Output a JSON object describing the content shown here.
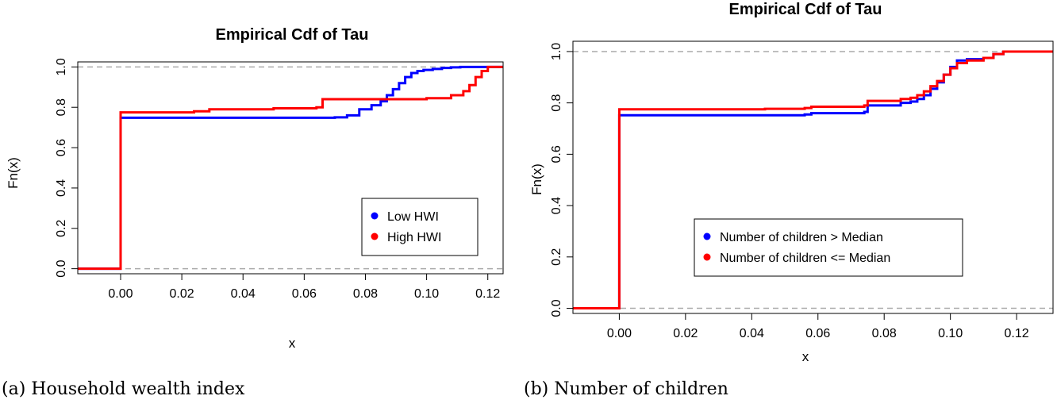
{
  "figure": {
    "caption_a": "(a) Household wealth index",
    "caption_b": "(b) Number of children"
  },
  "colors": {
    "blue": "#0000ff",
    "red": "#ff0000",
    "ref_line": "#aaaaaa",
    "axis": "#000000"
  },
  "chart_data": [
    {
      "type": "line",
      "step": "post",
      "title": "Empirical Cdf of Tau",
      "xlabel": "x",
      "ylabel": "Fn(x)",
      "xlim": [
        -0.014,
        0.125
      ],
      "ylim": [
        -0.025,
        1.025
      ],
      "xticks": [
        0.0,
        0.02,
        0.04,
        0.06,
        0.08,
        0.1,
        0.12
      ],
      "xtick_labels": [
        "0.00",
        "0.02",
        "0.04",
        "0.06",
        "0.08",
        "0.10",
        "0.12"
      ],
      "yticks": [
        0.0,
        0.2,
        0.4,
        0.6,
        0.8,
        1.0
      ],
      "ytick_labels": [
        "0.0",
        "0.2",
        "0.4",
        "0.6",
        "0.8",
        "1.0"
      ],
      "reference_lines_y": [
        0,
        1
      ],
      "legend": {
        "position": "bottom-right",
        "entries": [
          "Low HWI",
          "High HWI"
        ]
      },
      "series": [
        {
          "name": "Low HWI",
          "color": "#0000ff",
          "x": [
            0.0,
            0.07,
            0.074,
            0.078,
            0.082,
            0.085,
            0.087,
            0.089,
            0.091,
            0.093,
            0.095,
            0.097,
            0.099,
            0.102,
            0.105,
            0.108,
            0.111
          ],
          "y": [
            0.748,
            0.75,
            0.76,
            0.79,
            0.81,
            0.83,
            0.86,
            0.89,
            0.92,
            0.95,
            0.97,
            0.98,
            0.985,
            0.99,
            0.995,
            0.998,
            1.0
          ]
        },
        {
          "name": "High HWI",
          "color": "#ff0000",
          "x": [
            0.0,
            0.024,
            0.029,
            0.05,
            0.064,
            0.066,
            0.1,
            0.108,
            0.112,
            0.114,
            0.116,
            0.118,
            0.12
          ],
          "y": [
            0.775,
            0.78,
            0.79,
            0.795,
            0.8,
            0.84,
            0.845,
            0.86,
            0.88,
            0.91,
            0.95,
            0.98,
            1.0
          ]
        }
      ]
    },
    {
      "type": "line",
      "step": "post",
      "title": "Empirical Cdf of Tau",
      "xlabel": "x",
      "ylabel": "Fn(x)",
      "xlim": [
        -0.014,
        0.131
      ],
      "ylim": [
        -0.02,
        1.04
      ],
      "xticks": [
        0.0,
        0.02,
        0.04,
        0.06,
        0.08,
        0.1,
        0.12
      ],
      "xtick_labels": [
        "0.00",
        "0.02",
        "0.04",
        "0.06",
        "0.08",
        "0.10",
        "0.12"
      ],
      "yticks": [
        0.0,
        0.2,
        0.4,
        0.6,
        0.8,
        1.0
      ],
      "ytick_labels": [
        "0.0",
        "0.2",
        "0.4",
        "0.6",
        "0.8",
        "1.0"
      ],
      "reference_lines_y": [
        0,
        1
      ],
      "legend": {
        "position": "bottom-center",
        "entries": [
          "Number of children > Median",
          "Number of children <= Median"
        ]
      },
      "series": [
        {
          "name": "Number of children > Median",
          "color": "#0000ff",
          "x": [
            0.0,
            0.056,
            0.058,
            0.074,
            0.075,
            0.085,
            0.088,
            0.09,
            0.092,
            0.094,
            0.096,
            0.098,
            0.1,
            0.102,
            0.105,
            0.11,
            0.113,
            0.116
          ],
          "y": [
            0.752,
            0.755,
            0.76,
            0.765,
            0.79,
            0.8,
            0.805,
            0.815,
            0.83,
            0.855,
            0.88,
            0.91,
            0.94,
            0.965,
            0.97,
            0.975,
            0.99,
            1.0
          ]
        },
        {
          "name": "Number of children <= Median",
          "color": "#ff0000",
          "x": [
            0.0,
            0.044,
            0.056,
            0.058,
            0.074,
            0.075,
            0.085,
            0.088,
            0.09,
            0.092,
            0.094,
            0.096,
            0.098,
            0.1,
            0.102,
            0.105,
            0.11,
            0.113,
            0.116
          ],
          "y": [
            0.775,
            0.777,
            0.78,
            0.785,
            0.79,
            0.808,
            0.815,
            0.82,
            0.83,
            0.845,
            0.865,
            0.885,
            0.91,
            0.935,
            0.955,
            0.965,
            0.975,
            0.99,
            1.0
          ]
        }
      ]
    }
  ]
}
